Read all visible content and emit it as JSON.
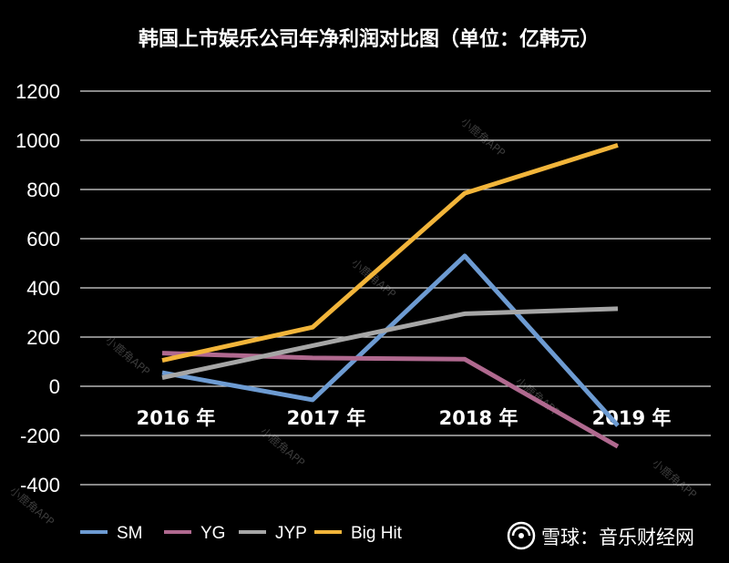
{
  "chart_data": {
    "type": "line",
    "title": "韩国上市娱乐公司年净利润对比图（单位：亿韩元）",
    "categories": [
      "2016 年",
      "2017 年",
      "2018 年",
      "2019 年"
    ],
    "ylim": [
      -400,
      1200
    ],
    "yticks": [
      -400,
      -200,
      0,
      200,
      400,
      600,
      800,
      1000,
      1200
    ],
    "grid": true,
    "legend_position": "bottom-left",
    "series": [
      {
        "name": "SM",
        "color": "#6d9bd2",
        "values": [
          55,
          -55,
          530,
          -160
        ]
      },
      {
        "name": "YG",
        "color": "#b0698f",
        "values": [
          135,
          115,
          110,
          -245
        ]
      },
      {
        "name": "JYP",
        "color": "#a6a6a6",
        "values": [
          35,
          165,
          295,
          315
        ]
      },
      {
        "name": "Big Hit",
        "color": "#f2b53a",
        "values": [
          105,
          240,
          785,
          980
        ]
      }
    ]
  },
  "watermark": "小鹿角APP",
  "brand": {
    "name": "雪球：音乐财经网"
  }
}
